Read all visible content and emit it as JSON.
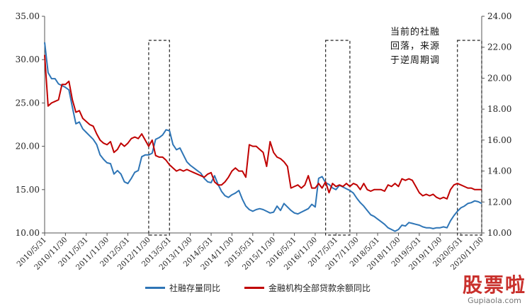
{
  "chart_data": {
    "type": "line",
    "annotation": "当前的社融回落，来源于逆周期调",
    "left_axis": {
      "ylim": [
        10,
        35
      ],
      "ticks": [
        "10.00",
        "15.00",
        "20.00",
        "25.00",
        "30.00",
        "35.00"
      ]
    },
    "right_axis": {
      "ylim": [
        10,
        24
      ],
      "ticks": [
        "10.00",
        "12.00",
        "14.00",
        "16.00",
        "18.00",
        "20.00",
        "22.00",
        "24.00"
      ]
    },
    "x_ticks": [
      "2010/5/31",
      "2010/11/30",
      "2011/5/31",
      "2011/11/30",
      "2012/5/31",
      "2012/11/30",
      "2013/5/31",
      "2013/11/30",
      "2014/5/31",
      "2014/11/30",
      "2015/5/31",
      "2015/11/30",
      "2016/5/31",
      "2016/11/30",
      "2017/5/31",
      "2017/11/30",
      "2018/5/31",
      "2018/11/30",
      "2019/5/31",
      "2019/11/30",
      "2020/5/31",
      "2020/11/30"
    ],
    "highlight_ranges": [
      [
        "2012/11/30",
        "2013/5/31"
      ],
      [
        "2017/2/28",
        "2017/9/30"
      ],
      [
        "2020/4/30",
        "2020/11/30"
      ]
    ],
    "series": [
      {
        "name": "社融存量同比",
        "axis": "left",
        "color": "#2e75b6",
        "x_months": [
          0,
          1,
          2,
          3,
          4,
          5,
          6,
          7,
          8,
          9,
          10,
          11,
          12,
          13,
          14,
          15,
          16,
          17,
          18,
          19,
          20,
          21,
          22,
          23,
          24,
          25,
          26,
          27,
          28,
          29,
          30,
          31,
          32,
          33,
          34,
          35,
          36,
          37,
          38,
          39,
          40,
          41,
          42,
          43,
          44,
          45,
          46,
          47,
          48,
          49,
          50,
          51,
          52,
          53,
          54,
          55,
          56,
          57,
          58,
          59,
          60,
          61,
          62,
          63,
          64,
          65,
          66,
          67,
          68,
          69,
          70,
          71,
          72,
          73,
          74,
          75,
          76,
          77,
          78,
          79,
          80,
          81,
          82,
          83,
          84,
          85,
          86,
          87,
          88,
          89,
          90,
          91,
          92,
          93,
          94,
          95,
          96,
          97,
          98,
          99,
          100,
          101,
          102,
          103,
          104,
          105,
          106,
          107,
          108,
          109,
          110,
          111,
          112,
          113,
          114,
          115,
          116,
          117,
          118,
          119,
          120,
          121,
          122,
          123,
          124,
          125,
          126
        ],
        "values": [
          32.0,
          28.5,
          27.8,
          27.8,
          27.2,
          27.0,
          26.8,
          26.5,
          24.5,
          22.6,
          22.8,
          22.0,
          21.6,
          21.2,
          20.8,
          20.2,
          19.0,
          18.5,
          18.1,
          18.0,
          16.8,
          17.2,
          16.8,
          15.9,
          15.7,
          16.3,
          17.0,
          17.2,
          18.8,
          19.0,
          19.0,
          19.2,
          20.8,
          21.0,
          21.3,
          21.9,
          21.8,
          20.2,
          19.6,
          19.8,
          19.0,
          18.2,
          17.8,
          17.5,
          17.2,
          16.9,
          16.3,
          15.9,
          15.8,
          16.6,
          15.6,
          14.8,
          14.3,
          14.1,
          14.4,
          14.6,
          14.9,
          13.9,
          13.1,
          12.7,
          12.5,
          12.7,
          12.8,
          12.7,
          12.5,
          12.3,
          12.4,
          13.1,
          12.6,
          13.4,
          13.0,
          12.6,
          12.3,
          12.2,
          12.4,
          12.6,
          12.8,
          13.3,
          13.0,
          16.3,
          16.5,
          15.8,
          15.6,
          15.2,
          15.0,
          15.5,
          15.3,
          15.1,
          14.9,
          14.6,
          14.0,
          13.5,
          13.1,
          12.6,
          12.1,
          11.9,
          11.6,
          11.3,
          11.0,
          10.6,
          10.4,
          10.2,
          10.4,
          10.9,
          10.8,
          11.2,
          11.1,
          11.0,
          10.9,
          10.7,
          10.6,
          10.6,
          10.5,
          10.6,
          10.6,
          10.7,
          10.6,
          11.4,
          12.0,
          12.5,
          12.9,
          13.1,
          13.4,
          13.5,
          13.7,
          13.6,
          13.4
        ]
      },
      {
        "name": "金融机构全部贷款余额同比",
        "axis": "right",
        "color": "#c00000",
        "x_months": [
          0,
          1,
          2,
          3,
          4,
          5,
          6,
          7,
          8,
          9,
          10,
          11,
          12,
          13,
          14,
          15,
          16,
          17,
          18,
          19,
          20,
          21,
          22,
          23,
          24,
          25,
          26,
          27,
          28,
          29,
          30,
          31,
          32,
          33,
          34,
          35,
          36,
          37,
          38,
          39,
          40,
          41,
          42,
          43,
          44,
          45,
          46,
          47,
          48,
          49,
          50,
          51,
          52,
          53,
          54,
          55,
          56,
          57,
          58,
          59,
          60,
          61,
          62,
          63,
          64,
          65,
          66,
          67,
          68,
          69,
          70,
          71,
          72,
          73,
          74,
          75,
          76,
          77,
          78,
          79,
          80,
          81,
          82,
          83,
          84,
          85,
          86,
          87,
          88,
          89,
          90,
          91,
          92,
          93,
          94,
          95,
          96,
          97,
          98,
          99,
          100,
          101,
          102,
          103,
          104,
          105,
          106,
          107,
          108,
          109,
          110,
          111,
          112,
          113,
          114,
          115,
          116,
          117,
          118,
          119,
          120,
          121,
          122,
          123,
          124,
          125,
          126
        ],
        "values": [
          21.5,
          18.2,
          18.4,
          18.5,
          18.6,
          19.6,
          19.6,
          19.8,
          18.6,
          17.8,
          17.9,
          17.4,
          17.2,
          17.0,
          16.9,
          16.4,
          16.0,
          15.8,
          15.7,
          15.9,
          15.2,
          15.4,
          15.8,
          15.6,
          15.8,
          16.1,
          16.2,
          16.1,
          16.4,
          16.0,
          15.6,
          16.0,
          15.0,
          14.9,
          14.9,
          14.7,
          14.4,
          14.2,
          14.0,
          14.1,
          14.0,
          14.1,
          14.0,
          13.9,
          13.8,
          13.7,
          13.6,
          13.8,
          13.9,
          13.3,
          13.1,
          13.1,
          13.3,
          13.6,
          14.0,
          14.2,
          14.0,
          14.0,
          13.6,
          15.7,
          15.6,
          15.6,
          15.4,
          15.2,
          14.3,
          15.9,
          15.2,
          14.9,
          14.8,
          14.6,
          14.3,
          12.9,
          13.0,
          13.1,
          12.9,
          13.1,
          13.7,
          12.9,
          12.9,
          13.2,
          12.9,
          13.3,
          12.6,
          13.2,
          13.0,
          13.1,
          13.0,
          13.2,
          13.0,
          13.2,
          13.1,
          12.8,
          13.2,
          12.8,
          12.7,
          12.8,
          12.8,
          12.8,
          12.7,
          13.1,
          13.0,
          13.2,
          13.0,
          13.5,
          13.4,
          13.5,
          13.4,
          13.0,
          12.6,
          12.4,
          12.5,
          12.4,
          12.5,
          12.3,
          12.2,
          12.3,
          12.2,
          12.8,
          13.1,
          13.2,
          13.1,
          13.0,
          12.9,
          12.9,
          12.8,
          12.8,
          12.8
        ]
      }
    ]
  },
  "legend": {
    "social_financing": "社融存量同比",
    "loans": "金融机构全部贷款余额同比"
  },
  "watermark": {
    "logo": "股票啦",
    "url": "Gupiaola.com"
  }
}
